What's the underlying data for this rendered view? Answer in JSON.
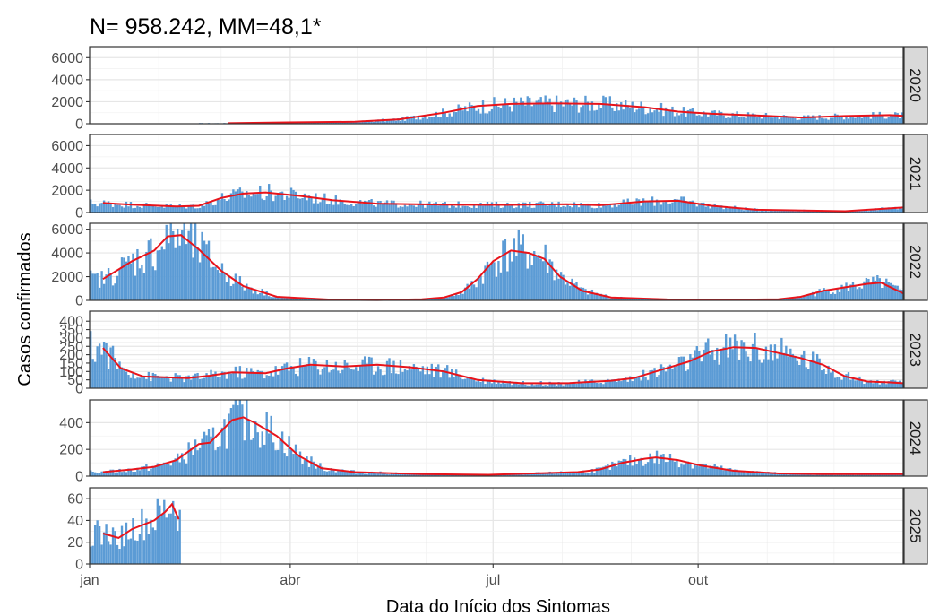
{
  "chart_data": {
    "type": "bar",
    "title": "N= 958.242, MM=48,1*",
    "xlabel": "Data do Início dos Sintomas",
    "ylabel": "Casos confirmados",
    "x_ticks": [
      "jan",
      "abr",
      "jul",
      "out"
    ],
    "grid": true,
    "bar_color": "#5b9bd5",
    "line_color": "#e8141b",
    "facets": [
      {
        "year": "2020",
        "ylim": [
          0,
          7000
        ],
        "y_ticks": [
          0,
          2000,
          4000,
          6000
        ],
        "bar_range": [
          50,
          365
        ],
        "moving_average": [
          [
            63,
            50
          ],
          [
            90,
            120
          ],
          [
            120,
            180
          ],
          [
            140,
            400
          ],
          [
            160,
            1000
          ],
          [
            175,
            1600
          ],
          [
            190,
            1800
          ],
          [
            210,
            1850
          ],
          [
            230,
            1800
          ],
          [
            250,
            1500
          ],
          [
            265,
            1100
          ],
          [
            280,
            900
          ],
          [
            300,
            750
          ],
          [
            320,
            560
          ],
          [
            340,
            700
          ],
          [
            360,
            780
          ],
          [
            366,
            720
          ]
        ]
      },
      {
        "year": "2021",
        "ylim": [
          0,
          7000
        ],
        "y_ticks": [
          0,
          2000,
          4000,
          6000
        ],
        "bar_range": [
          1,
          366
        ],
        "moving_average": [
          [
            7,
            850
          ],
          [
            20,
            700
          ],
          [
            40,
            550
          ],
          [
            50,
            600
          ],
          [
            60,
            1300
          ],
          [
            70,
            1700
          ],
          [
            80,
            1800
          ],
          [
            95,
            1500
          ],
          [
            110,
            1100
          ],
          [
            130,
            800
          ],
          [
            160,
            700
          ],
          [
            190,
            680
          ],
          [
            215,
            750
          ],
          [
            230,
            650
          ],
          [
            250,
            1000
          ],
          [
            265,
            1050
          ],
          [
            280,
            600
          ],
          [
            300,
            250
          ],
          [
            340,
            120
          ],
          [
            366,
            450
          ]
        ]
      },
      {
        "year": "2022",
        "ylim": [
          0,
          6500
        ],
        "y_ticks": [
          0,
          2000,
          4000,
          6000
        ],
        "bar_range": [
          1,
          366
        ],
        "moving_average": [
          [
            7,
            1800
          ],
          [
            20,
            3300
          ],
          [
            30,
            4200
          ],
          [
            36,
            5400
          ],
          [
            42,
            5500
          ],
          [
            50,
            4300
          ],
          [
            60,
            2500
          ],
          [
            70,
            1200
          ],
          [
            85,
            300
          ],
          [
            110,
            50
          ],
          [
            130,
            30
          ],
          [
            150,
            100
          ],
          [
            160,
            250
          ],
          [
            168,
            700
          ],
          [
            175,
            1800
          ],
          [
            182,
            3300
          ],
          [
            190,
            4200
          ],
          [
            198,
            4000
          ],
          [
            205,
            3500
          ],
          [
            212,
            2000
          ],
          [
            222,
            800
          ],
          [
            235,
            250
          ],
          [
            260,
            80
          ],
          [
            290,
            50
          ],
          [
            310,
            100
          ],
          [
            320,
            300
          ],
          [
            330,
            800
          ],
          [
            340,
            1100
          ],
          [
            350,
            1400
          ],
          [
            356,
            1500
          ],
          [
            366,
            600
          ]
        ]
      },
      {
        "year": "2023",
        "ylim": [
          0,
          460
        ],
        "y_ticks": [
          0,
          50,
          100,
          150,
          200,
          250,
          300,
          350,
          400
        ],
        "bar_range": [
          1,
          366
        ],
        "moving_average": [
          [
            7,
            240
          ],
          [
            15,
            120
          ],
          [
            25,
            70
          ],
          [
            45,
            60
          ],
          [
            55,
            75
          ],
          [
            65,
            95
          ],
          [
            80,
            90
          ],
          [
            90,
            120
          ],
          [
            100,
            140
          ],
          [
            115,
            130
          ],
          [
            130,
            140
          ],
          [
            145,
            125
          ],
          [
            160,
            100
          ],
          [
            175,
            50
          ],
          [
            195,
            30
          ],
          [
            215,
            30
          ],
          [
            235,
            45
          ],
          [
            245,
            60
          ],
          [
            260,
            120
          ],
          [
            270,
            160
          ],
          [
            280,
            220
          ],
          [
            290,
            245
          ],
          [
            300,
            240
          ],
          [
            310,
            210
          ],
          [
            320,
            180
          ],
          [
            330,
            140
          ],
          [
            340,
            70
          ],
          [
            350,
            40
          ],
          [
            360,
            35
          ],
          [
            366,
            30
          ]
        ]
      },
      {
        "year": "2024",
        "ylim": [
          0,
          570
        ],
        "y_ticks": [
          0,
          200,
          400
        ],
        "bar_range": [
          1,
          366
        ],
        "moving_average": [
          [
            7,
            30
          ],
          [
            20,
            50
          ],
          [
            30,
            70
          ],
          [
            40,
            120
          ],
          [
            50,
            240
          ],
          [
            55,
            250
          ],
          [
            65,
            420
          ],
          [
            70,
            440
          ],
          [
            75,
            400
          ],
          [
            85,
            300
          ],
          [
            95,
            150
          ],
          [
            105,
            60
          ],
          [
            120,
            30
          ],
          [
            150,
            15
          ],
          [
            180,
            10
          ],
          [
            200,
            20
          ],
          [
            220,
            30
          ],
          [
            230,
            50
          ],
          [
            240,
            100
          ],
          [
            250,
            130
          ],
          [
            255,
            140
          ],
          [
            265,
            120
          ],
          [
            275,
            80
          ],
          [
            290,
            40
          ],
          [
            310,
            20
          ],
          [
            330,
            15
          ],
          [
            366,
            15
          ]
        ]
      },
      {
        "year": "2025",
        "ylim": [
          0,
          70
        ],
        "y_ticks": [
          0,
          20,
          40,
          60
        ],
        "bar_range": [
          1,
          41
        ],
        "moving_average": [
          [
            7,
            28
          ],
          [
            14,
            24
          ],
          [
            20,
            32
          ],
          [
            30,
            40
          ],
          [
            35,
            48
          ],
          [
            38,
            55
          ],
          [
            41,
            41
          ]
        ]
      }
    ]
  }
}
